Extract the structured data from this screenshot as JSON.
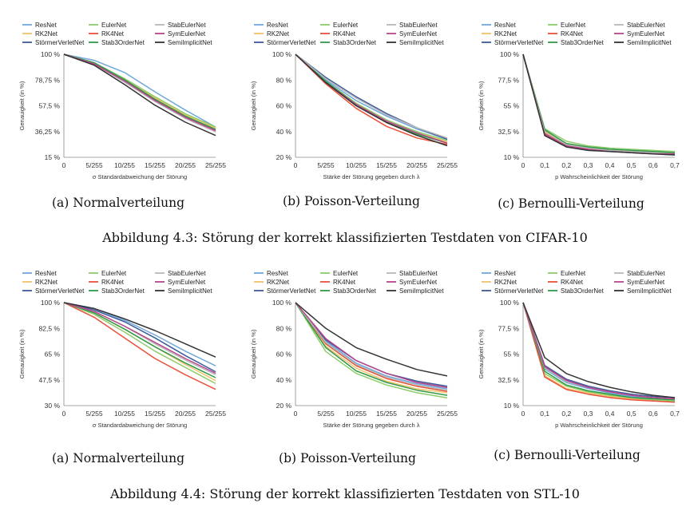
{
  "series_colors": [
    "#6fa8dc",
    "#f3c26b",
    "#3d5a99",
    "#8dcc6a",
    "#e8503a",
    "#2f9a4a",
    "#b8b8b8",
    "#b8458c",
    "#333333"
  ],
  "legend_labels": [
    "ResNet",
    "RK2Net",
    "StörmerVerletNet",
    "EulerNet",
    "RK4Net",
    "Stab3OrderNet",
    "StabEulerNet",
    "SymEulerNet",
    "SemiImplicitNet"
  ],
  "figures": [
    {
      "caption": "Abbildung 4.3: Störung der korrekt klassifizierten Testdaten von CIFAR-10"
    },
    {
      "caption": "Abbildung 4.4: Störung der korrekt klassifizierten Testdaten von STL-10"
    }
  ],
  "chart_data": [
    {
      "type": "line",
      "caption": "(a) Normalverteilung",
      "ylabel": "Genauigkeit (in %)",
      "xlabel": "σ  Standardabweichung der Störung",
      "x": [
        0,
        1,
        2,
        3,
        4,
        5
      ],
      "x_ticks": [
        "0",
        "5/255",
        "10/255",
        "15/255",
        "20/255",
        "25/255"
      ],
      "ylim": [
        15,
        100
      ],
      "y_tick_values": [
        15,
        36.25,
        57.5,
        78.75,
        100
      ],
      "y_ticks": [
        "15 %",
        "36,25 %",
        "57,5 %",
        "78,75 %",
        "100 %"
      ],
      "series": [
        {
          "name": "ResNet",
          "values": [
            100,
            95,
            85,
            69,
            54,
            40
          ]
        },
        {
          "name": "RK2Net",
          "values": [
            100,
            93,
            79,
            64,
            50,
            39
          ]
        },
        {
          "name": "StörmerVerletNet",
          "values": [
            100,
            92,
            77,
            62,
            48,
            37
          ]
        },
        {
          "name": "EulerNet",
          "values": [
            100,
            93,
            80,
            65,
            51,
            40
          ]
        },
        {
          "name": "RK4Net",
          "values": [
            100,
            92,
            78,
            62,
            48,
            36
          ]
        },
        {
          "name": "Stab3OrderNet",
          "values": [
            100,
            93,
            79,
            63,
            49,
            38
          ]
        },
        {
          "name": "StabEulerNet",
          "values": [
            100,
            92,
            77,
            61,
            47,
            36
          ]
        },
        {
          "name": "SymEulerNet",
          "values": [
            100,
            92,
            78,
            62,
            48,
            37
          ]
        },
        {
          "name": "SemiImplicitNet",
          "values": [
            100,
            91,
            75,
            58,
            44,
            33
          ]
        }
      ]
    },
    {
      "type": "line",
      "caption": "(b) Poisson-Verteilung",
      "ylabel": "Genauigkeit (in %)",
      "xlabel": "Stärke der Störung gegeben durch λ",
      "x": [
        0,
        1,
        2,
        3,
        4,
        5
      ],
      "x_ticks": [
        "0",
        "5/255",
        "10/255",
        "15/255",
        "20/255",
        "25/255"
      ],
      "ylim": [
        20,
        100
      ],
      "y_tick_values": [
        20,
        40,
        60,
        80,
        100
      ],
      "y_ticks": [
        "20 %",
        "40 %",
        "60 %",
        "80 %",
        "100 %"
      ],
      "series": [
        {
          "name": "ResNet",
          "values": [
            100,
            80,
            64,
            52,
            42,
            34
          ]
        },
        {
          "name": "RK2Net",
          "values": [
            100,
            78,
            61,
            48,
            39,
            32
          ]
        },
        {
          "name": "StörmerVerletNet",
          "values": [
            100,
            82,
            67,
            54,
            43,
            34
          ]
        },
        {
          "name": "EulerNet",
          "values": [
            100,
            79,
            62,
            49,
            40,
            33
          ]
        },
        {
          "name": "RK4Net",
          "values": [
            100,
            77,
            58,
            44,
            35,
            30
          ]
        },
        {
          "name": "Stab3OrderNet",
          "values": [
            100,
            79,
            61,
            47,
            38,
            31
          ]
        },
        {
          "name": "StabEulerNet",
          "values": [
            100,
            81,
            66,
            53,
            43,
            35
          ]
        },
        {
          "name": "SymEulerNet",
          "values": [
            100,
            78,
            61,
            48,
            39,
            31
          ]
        },
        {
          "name": "SemiImplicitNet",
          "values": [
            100,
            78,
            60,
            47,
            37,
            29
          ]
        }
      ]
    },
    {
      "type": "line",
      "caption": "(c) Bernoulli-Verteilung",
      "ylabel": "Genauigkeit (in %)",
      "xlabel": "p  Wahrscheinlichkeit der Störung",
      "x": [
        0,
        0.1,
        0.2,
        0.3,
        0.4,
        0.5,
        0.6,
        0.7
      ],
      "x_ticks": [
        "0",
        "0,1",
        "0,2",
        "0,3",
        "0,4",
        "0,5",
        "0,6",
        "0,7"
      ],
      "ylim": [
        10,
        100
      ],
      "y_tick_values": [
        10,
        32.5,
        55,
        77.5,
        100
      ],
      "y_ticks": [
        "10 %",
        "32,5 %",
        "55 %",
        "77,5 %",
        "100 %"
      ],
      "series": [
        {
          "name": "ResNet",
          "values": [
            100,
            32,
            21,
            18,
            16,
            15,
            14,
            13
          ]
        },
        {
          "name": "RK2Net",
          "values": [
            100,
            33,
            22,
            19,
            17,
            16,
            15,
            14
          ]
        },
        {
          "name": "StörmerVerletNet",
          "values": [
            100,
            31,
            20,
            17,
            16,
            15,
            14,
            13
          ]
        },
        {
          "name": "EulerNet",
          "values": [
            100,
            35,
            24,
            20,
            18,
            17,
            16,
            15
          ]
        },
        {
          "name": "RK4Net",
          "values": [
            100,
            31,
            21,
            17,
            16,
            15,
            14,
            13
          ]
        },
        {
          "name": "Stab3OrderNet",
          "values": [
            100,
            34,
            22,
            19,
            17,
            16,
            15,
            14
          ]
        },
        {
          "name": "StabEulerNet",
          "values": [
            100,
            32,
            21,
            18,
            16,
            15,
            14,
            13
          ]
        },
        {
          "name": "SymEulerNet",
          "values": [
            100,
            30,
            20,
            17,
            15,
            14,
            13,
            13
          ]
        },
        {
          "name": "SemiImplicitNet",
          "values": [
            100,
            29,
            19,
            16,
            15,
            14,
            13,
            12
          ]
        }
      ]
    },
    {
      "type": "line",
      "caption": "(a) Normalverteilung",
      "ylabel": "Genauigkeit (in %)",
      "xlabel": "σ  Standardabweichung der Störung",
      "x": [
        0,
        1,
        2,
        3,
        4,
        5
      ],
      "x_ticks": [
        "0",
        "5/255",
        "10/255",
        "15/255",
        "20/255",
        "25/255"
      ],
      "ylim": [
        30,
        100
      ],
      "y_tick_values": [
        30,
        47.5,
        65,
        82.5,
        100
      ],
      "y_ticks": [
        "30 %",
        "47,5 %",
        "65 %",
        "82,5 %",
        "100 %"
      ],
      "series": [
        {
          "name": "ResNet",
          "values": [
            100,
            96,
            88,
            78,
            67,
            57
          ]
        },
        {
          "name": "RK2Net",
          "values": [
            100,
            93,
            82,
            70,
            58,
            47
          ]
        },
        {
          "name": "StörmerVerletNet",
          "values": [
            100,
            95,
            87,
            76,
            64,
            53
          ]
        },
        {
          "name": "EulerNet",
          "values": [
            100,
            92,
            80,
            67,
            56,
            45
          ]
        },
        {
          "name": "RK4Net",
          "values": [
            100,
            90,
            76,
            62,
            51,
            41
          ]
        },
        {
          "name": "Stab3OrderNet",
          "values": [
            100,
            93,
            82,
            70,
            59,
            49
          ]
        },
        {
          "name": "StabEulerNet",
          "values": [
            100,
            94,
            84,
            72,
            61,
            51
          ]
        },
        {
          "name": "SymEulerNet",
          "values": [
            100,
            94,
            84,
            73,
            62,
            52
          ]
        },
        {
          "name": "SemiImplicitNet",
          "values": [
            100,
            96,
            89,
            81,
            72,
            63
          ]
        }
      ]
    },
    {
      "type": "line",
      "caption": "(b) Poisson-Verteilung",
      "ylabel": "Genauigkeit (in %)",
      "xlabel": "Stärke der Störung gegeben durch λ",
      "x": [
        0,
        1,
        2,
        3,
        4,
        5
      ],
      "x_ticks": [
        "0",
        "5/255",
        "10/255",
        "15/255",
        "20/255",
        "25/255"
      ],
      "ylim": [
        20,
        100
      ],
      "y_tick_values": [
        20,
        40,
        60,
        80,
        100
      ],
      "y_ticks": [
        "20 %",
        "40 %",
        "60 %",
        "80 %",
        "100 %"
      ],
      "series": [
        {
          "name": "ResNet",
          "values": [
            100,
            70,
            53,
            43,
            37,
            33
          ]
        },
        {
          "name": "RK2Net",
          "values": [
            100,
            66,
            49,
            39,
            33,
            30
          ]
        },
        {
          "name": "StörmerVerletNet",
          "values": [
            100,
            71,
            55,
            45,
            39,
            35
          ]
        },
        {
          "name": "EulerNet",
          "values": [
            100,
            62,
            45,
            36,
            30,
            26
          ]
        },
        {
          "name": "RK4Net",
          "values": [
            100,
            68,
            51,
            41,
            35,
            31
          ]
        },
        {
          "name": "Stab3OrderNet",
          "values": [
            100,
            65,
            47,
            38,
            32,
            28
          ]
        },
        {
          "name": "StabEulerNet",
          "values": [
            100,
            69,
            52,
            42,
            36,
            32
          ]
        },
        {
          "name": "SymEulerNet",
          "values": [
            100,
            72,
            55,
            45,
            38,
            34
          ]
        },
        {
          "name": "SemiImplicitNet",
          "values": [
            100,
            80,
            65,
            56,
            48,
            43
          ]
        }
      ]
    },
    {
      "type": "line",
      "caption": "(c) Bernoulli-Verteilung",
      "ylabel": "Genauigkeit (in %)",
      "xlabel": "p  Wahrscheinlichkeit der Störung",
      "x": [
        0,
        0.1,
        0.2,
        0.3,
        0.4,
        0.5,
        0.6,
        0.7
      ],
      "x_ticks": [
        "0",
        "0,1",
        "0,2",
        "0,3",
        "0,4",
        "0,5",
        "0,6",
        "0,7"
      ],
      "ylim": [
        10,
        100
      ],
      "y_tick_values": [
        10,
        32.5,
        55,
        77.5,
        100
      ],
      "y_ticks": [
        "10 %",
        "32,5 %",
        "55 %",
        "77,5 %",
        "100 %"
      ],
      "series": [
        {
          "name": "ResNet",
          "values": [
            100,
            42,
            30,
            25,
            21,
            18,
            16,
            15
          ]
        },
        {
          "name": "RK2Net",
          "values": [
            100,
            36,
            25,
            21,
            18,
            16,
            15,
            14
          ]
        },
        {
          "name": "StörmerVerletNet",
          "values": [
            100,
            45,
            33,
            27,
            23,
            20,
            18,
            17
          ]
        },
        {
          "name": "EulerNet",
          "values": [
            100,
            38,
            27,
            22,
            19,
            17,
            15,
            14
          ]
        },
        {
          "name": "RK4Net",
          "values": [
            100,
            35,
            24,
            20,
            17,
            15,
            14,
            13
          ]
        },
        {
          "name": "Stab3OrderNet",
          "values": [
            100,
            40,
            28,
            23,
            20,
            17,
            16,
            15
          ]
        },
        {
          "name": "StabEulerNet",
          "values": [
            100,
            43,
            31,
            26,
            22,
            19,
            17,
            16
          ]
        },
        {
          "name": "SymEulerNet",
          "values": [
            100,
            44,
            32,
            26,
            22,
            19,
            17,
            16
          ]
        },
        {
          "name": "SemiImplicitNet",
          "values": [
            100,
            52,
            38,
            31,
            26,
            22,
            19,
            17
          ]
        }
      ]
    }
  ]
}
